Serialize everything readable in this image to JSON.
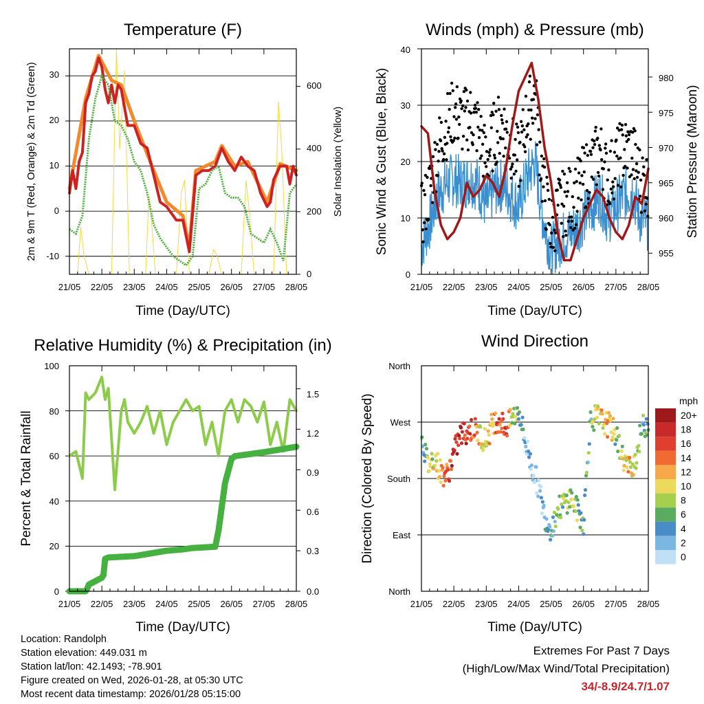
{
  "colors": {
    "temp_2m": "#cc2222",
    "temp_9m": "#f08a2c",
    "dewpoint": "#4daf3c",
    "solar": "#f5d742",
    "wind": "#3a8fd0",
    "gust": "#000000",
    "pressure": "#a01818",
    "rh": "#8dcc4a",
    "precip": "#46b040",
    "extremes": "#cc2229"
  },
  "time_ticks": [
    "21/05",
    "22/05",
    "23/05",
    "24/05",
    "25/05",
    "26/05",
    "27/05",
    "28/05"
  ],
  "time_axis_label": "Time (Day/UTC)",
  "panels": {
    "temperature": {
      "title": "Temperature (F)",
      "ylabel_left": "2m & 9m T (Red, Orange) & 2m Td (Green)",
      "ylabel_right": "Solar Insolation (Yellow)",
      "left_ticks": [
        "30",
        "20",
        "10",
        "0",
        "-10"
      ],
      "right_ticks": [
        "600",
        "400",
        "200",
        "0"
      ]
    },
    "winds": {
      "title": "Winds (mph) & Pressure (mb)",
      "ylabel_left": "Sonic Wind & Gust (Blue, Black)",
      "ylabel_right": "Station Pressure (Maroon)",
      "left_ticks": [
        "40",
        "30",
        "20",
        "10",
        "0"
      ],
      "right_ticks": [
        "980",
        "975",
        "970",
        "965",
        "960",
        "955"
      ]
    },
    "humidity": {
      "title": "Relative Humidity (%) & Precipitation (in)",
      "ylabel_left": "Percent & Total Rainfall",
      "left_ticks": [
        "100",
        "80",
        "60",
        "40",
        "20",
        "0"
      ],
      "right_ticks": [
        "1.5",
        "1.2",
        "0.9",
        "0.6",
        "0.3",
        "0.0"
      ]
    },
    "direction": {
      "title": "Wind Direction",
      "ylabel_left": "Direction (Colored By Speed)",
      "left_ticks": [
        "North",
        "West",
        "South",
        "East",
        "North"
      ],
      "legend_title": "mph",
      "legend_labels": [
        "20+",
        "18",
        "16",
        "14",
        "12",
        "10",
        "8",
        "6",
        "4",
        "2",
        "0"
      ],
      "legend_colors": [
        "#9e1a1a",
        "#c82a2a",
        "#e03e2e",
        "#f06a32",
        "#f7a84a",
        "#ecd85a",
        "#a6cf50",
        "#5aab60",
        "#4a8cc8",
        "#7cb6e2",
        "#bfe0f5"
      ]
    }
  },
  "chart_data": [
    {
      "type": "line",
      "title": "Temperature (F)",
      "xlabel": "Time (Day/UTC)",
      "x_days": [
        0,
        7
      ],
      "ylim_left": [
        -14,
        36
      ],
      "ylim_right": [
        0,
        720
      ],
      "series": [
        {
          "name": "2m T",
          "axis": "left",
          "x": [
            0,
            0.1,
            0.2,
            0.3,
            0.4,
            0.5,
            0.6,
            0.7,
            0.8,
            0.9,
            1.0,
            1.1,
            1.2,
            1.3,
            1.4,
            1.5,
            1.6,
            1.7,
            1.8,
            2.0,
            2.2,
            2.4,
            2.6,
            2.8,
            3.0,
            3.1,
            3.2,
            3.3,
            3.5,
            3.7,
            3.9,
            4.1,
            4.3,
            4.5,
            4.7,
            4.9,
            5.1,
            5.3,
            5.5,
            5.7,
            5.9,
            6.1,
            6.2,
            6.3,
            6.5,
            6.7,
            6.8,
            6.9,
            7.0
          ],
          "values": [
            4,
            9,
            5,
            11,
            13,
            24,
            26,
            30,
            31,
            34,
            32,
            27,
            24,
            28,
            24,
            28,
            27,
            23,
            19,
            19,
            15,
            14,
            8,
            2,
            1,
            0,
            -1,
            -2,
            -2,
            -9,
            8,
            9,
            9,
            10,
            14,
            11,
            9,
            12,
            10,
            9,
            4,
            1,
            2,
            7,
            10,
            10,
            6,
            10,
            8
          ]
        },
        {
          "name": "9m T",
          "axis": "left",
          "x": [
            0,
            0.5,
            0.9,
            1.3,
            1.6,
            2.0,
            2.6,
            3.0,
            3.5,
            3.7,
            3.9,
            4.5,
            4.7,
            5.1,
            5.5,
            5.9,
            6.1,
            6.5,
            7.0
          ],
          "values": [
            5,
            25,
            34.5,
            29,
            28,
            20,
            9,
            2,
            -1,
            -8,
            9,
            11,
            14.5,
            10,
            11,
            5,
            2,
            10.5,
            9
          ]
        },
        {
          "name": "2m Td",
          "axis": "left",
          "x": [
            0,
            0.2,
            0.4,
            0.6,
            0.8,
            1.0,
            1.2,
            1.4,
            1.6,
            1.8,
            2.0,
            2.2,
            2.4,
            2.6,
            2.8,
            3.0,
            3.2,
            3.4,
            3.6,
            3.8,
            4.0,
            4.2,
            4.4,
            4.6,
            4.8,
            5.0,
            5.2,
            5.4,
            5.6,
            5.8,
            6.0,
            6.2,
            6.4,
            6.6,
            6.8,
            7.0
          ],
          "values": [
            -4,
            -5,
            -1,
            16,
            25,
            30,
            28,
            20,
            19,
            16,
            11,
            9,
            4,
            -3,
            -6,
            -8,
            -10,
            -11,
            -12,
            -10,
            5,
            6,
            9,
            10,
            4,
            3,
            3,
            1,
            -5,
            -6,
            -7,
            -4,
            -7,
            -11,
            4,
            6
          ]
        },
        {
          "name": "Solar",
          "axis": "right",
          "x": [
            0,
            0.25,
            0.35,
            0.45,
            0.6,
            1.3,
            1.45,
            1.55,
            1.7,
            1.85,
            2.35,
            2.45,
            2.55,
            2.65,
            3.3,
            3.45,
            3.55,
            3.7,
            4.3,
            4.45,
            4.55,
            4.7,
            5.3,
            5.45,
            5.55,
            5.7,
            6.3,
            6.45,
            6.55,
            6.7,
            7.0
          ],
          "values": [
            0,
            0,
            150,
            60,
            0,
            0,
            720,
            400,
            650,
            0,
            0,
            250,
            150,
            0,
            0,
            260,
            300,
            0,
            0,
            80,
            60,
            0,
            0,
            300,
            200,
            0,
            0,
            550,
            400,
            0,
            0
          ]
        }
      ]
    },
    {
      "type": "scatter",
      "title": "Winds (mph) & Pressure (mb)",
      "xlabel": "Time (Day/UTC)",
      "x_days": [
        0,
        7
      ],
      "ylim_left": [
        0,
        40
      ],
      "ylim_right": [
        952,
        984
      ],
      "series": [
        {
          "name": "Sonic Wind",
          "axis": "left",
          "x": [
            0,
            0.25,
            0.5,
            0.75,
            1.0,
            1.25,
            1.5,
            1.75,
            2.0,
            2.25,
            2.5,
            2.75,
            3.0,
            3.25,
            3.5,
            3.75,
            4.0,
            4.25,
            4.5,
            4.75,
            5.0,
            5.25,
            5.5,
            5.75,
            6.0,
            6.25,
            6.5,
            6.75,
            7.0
          ],
          "values": [
            5,
            9,
            14,
            16,
            17,
            16,
            17,
            16,
            12,
            15,
            16,
            14,
            12,
            17,
            20,
            10,
            4,
            6,
            7,
            8,
            10,
            12,
            14,
            10,
            12,
            14,
            15,
            10,
            9
          ]
        },
        {
          "name": "Gust",
          "axis": "left",
          "x": [
            0,
            0.25,
            0.5,
            0.75,
            1.0,
            1.25,
            1.5,
            1.75,
            2.0,
            2.25,
            2.5,
            2.75,
            3.0,
            3.25,
            3.5,
            3.75,
            4.0,
            4.25,
            4.5,
            4.75,
            5.0,
            5.25,
            5.5,
            5.75,
            6.0,
            6.25,
            6.5,
            6.75,
            7.0
          ],
          "values": [
            10,
            15,
            22,
            26,
            29,
            27,
            28,
            26,
            20,
            25,
            27,
            23,
            20,
            28,
            32,
            16,
            8,
            12,
            13,
            14,
            17,
            19,
            22,
            17,
            20,
            22,
            22,
            17,
            16
          ]
        },
        {
          "name": "Station Pressure",
          "axis": "right",
          "type": "line",
          "x": [
            0,
            0.2,
            0.4,
            0.6,
            0.8,
            1.0,
            1.2,
            1.4,
            1.6,
            1.8,
            2.0,
            2.2,
            2.4,
            2.6,
            2.8,
            3.0,
            3.2,
            3.4,
            3.6,
            3.8,
            4.0,
            4.2,
            4.4,
            4.6,
            4.8,
            5.0,
            5.2,
            5.4,
            5.6,
            5.8,
            6.0,
            6.2,
            6.4,
            6.6,
            6.8,
            7.0
          ],
          "values": [
            973,
            972,
            964,
            959,
            957,
            958,
            960,
            965,
            963,
            964,
            966,
            965,
            963,
            967,
            973,
            978,
            980,
            982,
            977,
            970,
            965,
            958,
            954,
            954,
            957,
            960,
            962,
            964,
            963,
            960,
            958,
            957,
            959,
            963,
            962,
            967
          ]
        }
      ]
    },
    {
      "type": "line",
      "title": "Relative Humidity (%) & Precipitation (in)",
      "xlabel": "Time (Day/UTC)",
      "x_days": [
        0,
        7
      ],
      "ylim_left": [
        0,
        100
      ],
      "ylim_right": [
        0,
        1.67
      ],
      "series": [
        {
          "name": "Relative Humidity",
          "axis": "left",
          "x": [
            0,
            0.2,
            0.4,
            0.5,
            0.6,
            0.8,
            1.0,
            1.1,
            1.2,
            1.4,
            1.6,
            1.7,
            1.8,
            2.0,
            2.2,
            2.4,
            2.6,
            2.8,
            3.0,
            3.2,
            3.4,
            3.6,
            3.8,
            4.0,
            4.2,
            4.4,
            4.6,
            4.8,
            5.0,
            5.2,
            5.4,
            5.6,
            5.8,
            6.0,
            6.2,
            6.4,
            6.6,
            6.8,
            7.0
          ],
          "values": [
            60,
            62,
            50,
            88,
            85,
            88,
            95,
            85,
            90,
            45,
            80,
            85,
            75,
            70,
            75,
            82,
            70,
            80,
            65,
            75,
            80,
            85,
            80,
            82,
            65,
            75,
            60,
            80,
            85,
            75,
            85,
            82,
            75,
            84,
            65,
            75,
            62,
            85,
            80
          ]
        },
        {
          "name": "Total Precipitation",
          "axis": "right",
          "x": [
            0,
            0.5,
            0.55,
            0.6,
            1.0,
            1.05,
            1.1,
            1.2,
            2.0,
            2.5,
            3.0,
            3.5,
            3.8,
            4.5,
            4.6,
            4.8,
            5.0,
            5.1,
            6.0,
            6.5,
            7.0
          ],
          "values": [
            0,
            0,
            0.02,
            0.05,
            0.1,
            0.12,
            0.24,
            0.25,
            0.26,
            0.28,
            0.3,
            0.31,
            0.32,
            0.33,
            0.45,
            0.8,
            0.98,
            1.0,
            1.03,
            1.05,
            1.07
          ]
        }
      ]
    },
    {
      "type": "scatter",
      "title": "Wind Direction",
      "xlabel": "Time (Day/UTC)",
      "x_days": [
        0,
        7
      ],
      "y_categories": [
        "North",
        "East",
        "South",
        "West",
        "North"
      ],
      "ylim": [
        0,
        360
      ],
      "series": [
        {
          "name": "Direction",
          "x": [
            0,
            0.2,
            0.4,
            0.6,
            0.8,
            1.0,
            1.2,
            1.4,
            1.6,
            1.8,
            2.0,
            2.2,
            2.4,
            2.6,
            2.8,
            3.0,
            3.2,
            3.4,
            3.6,
            3.8,
            4.0,
            4.2,
            4.4,
            4.6,
            4.8,
            5.0,
            5.2,
            5.4,
            5.6,
            5.8,
            6.0,
            6.2,
            6.4,
            6.6,
            6.8,
            7.0
          ],
          "values": [
            250,
            200,
            215,
            190,
            185,
            220,
            250,
            255,
            260,
            250,
            240,
            270,
            275,
            260,
            275,
            290,
            240,
            200,
            170,
            120,
            100,
            130,
            140,
            150,
            130,
            110,
            270,
            280,
            270,
            265,
            250,
            215,
            195,
            210,
            260,
            270
          ],
          "speeds": [
            4,
            8,
            10,
            12,
            16,
            18,
            20,
            18,
            16,
            12,
            10,
            14,
            16,
            18,
            10,
            6,
            4,
            2,
            3,
            4,
            5,
            7,
            8,
            9,
            8,
            6,
            6,
            10,
            12,
            14,
            8,
            10,
            12,
            10,
            6,
            8
          ]
        }
      ]
    }
  ],
  "info": {
    "location": "Location: Randolph",
    "elevation": "Station elevation: 449.031 m",
    "latlon": "Station lat/lon: 42.1493; -78.901",
    "created": "Figure created on Wed, 2026-01-28, at 05:30 UTC",
    "recent": "Most recent data timestamp: 2026/01/28 05:15:00"
  },
  "extremes": {
    "title": "Extremes For Past 7 Days",
    "subtitle": "(High/Low/Max Wind/Total Precipitation)",
    "values": "34/-8.9/24.7/1.07"
  }
}
